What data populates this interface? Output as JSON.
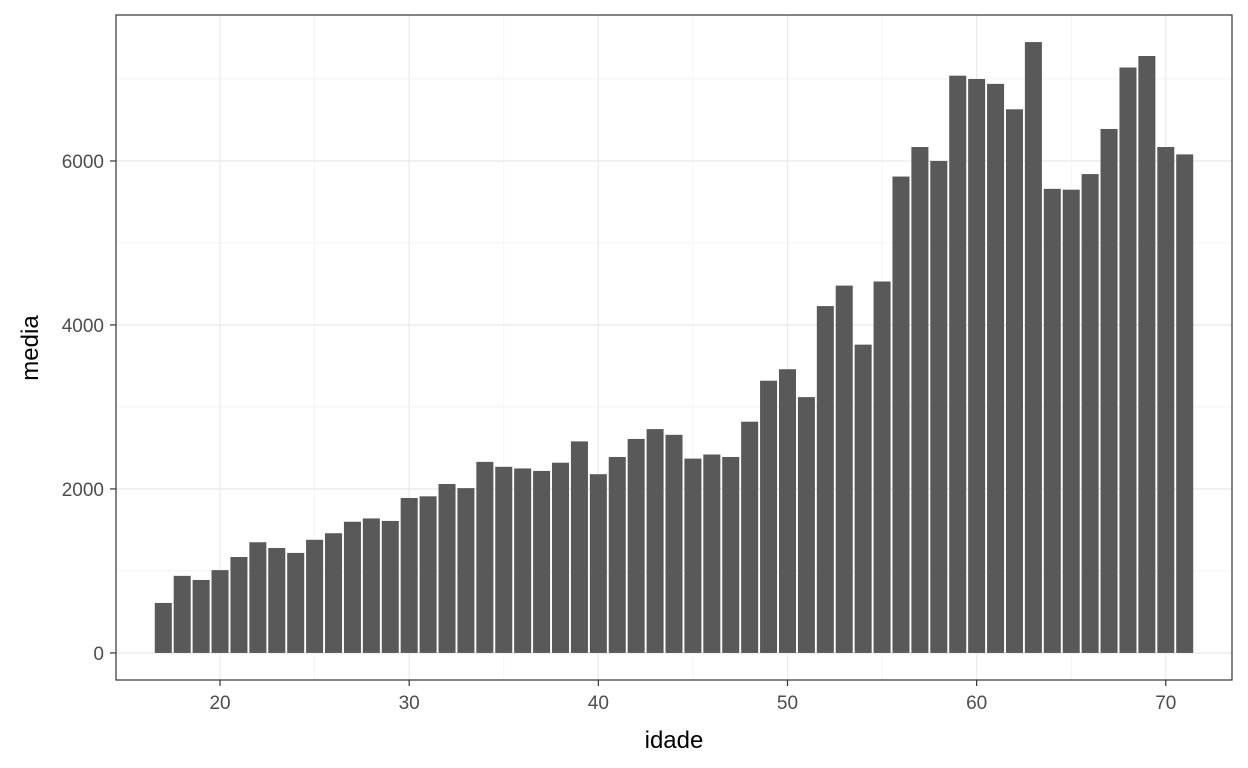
{
  "chart_data": {
    "type": "bar",
    "xlabel": "idade",
    "ylabel": "media",
    "xlim": [
      14.5,
      73.5
    ],
    "ylim": [
      -330,
      7780
    ],
    "x_ticks": [
      20,
      30,
      40,
      50,
      60,
      70
    ],
    "y_ticks": [
      0,
      2000,
      4000,
      6000
    ],
    "grid": true,
    "bar_color": "#595959",
    "x": [
      17,
      18,
      19,
      20,
      21,
      22,
      23,
      24,
      25,
      26,
      27,
      28,
      29,
      30,
      31,
      32,
      33,
      34,
      35,
      36,
      37,
      38,
      39,
      40,
      41,
      42,
      43,
      44,
      45,
      46,
      47,
      48,
      49,
      50,
      51,
      52,
      53,
      54,
      55,
      56,
      57,
      58,
      59,
      60,
      61,
      62,
      63,
      64,
      65,
      66,
      67,
      68,
      69,
      70,
      71
    ],
    "values": [
      610,
      940,
      890,
      1010,
      1170,
      1350,
      1280,
      1220,
      1380,
      1460,
      1600,
      1640,
      1610,
      1890,
      1910,
      2060,
      2010,
      2330,
      2270,
      2250,
      2220,
      2320,
      2580,
      2180,
      2390,
      2610,
      2730,
      2660,
      2370,
      2420,
      2390,
      2820,
      3320,
      3460,
      3120,
      4230,
      4480,
      3760,
      4530,
      5810,
      6170,
      6000,
      7040,
      7000,
      6940,
      6630,
      7450,
      5660,
      5650,
      5840,
      6390,
      7140,
      7280,
      6170,
      6080
    ]
  }
}
